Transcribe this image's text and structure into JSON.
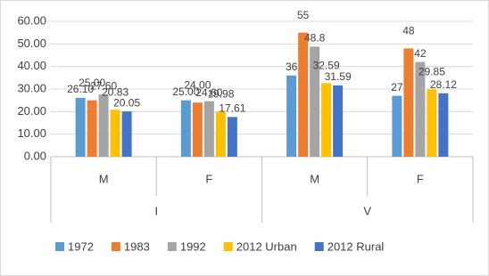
{
  "chart_data": {
    "type": "bar",
    "groups": [
      {
        "label": "I",
        "categories": [
          "M",
          "F"
        ]
      },
      {
        "label": "V",
        "categories": [
          "M",
          "F"
        ]
      }
    ],
    "series": [
      {
        "name": "1972",
        "color": "#5b9bd5",
        "values": [
          26.1,
          25,
          36,
          27
        ],
        "value_labels": [
          "26.10",
          "25.00",
          "36",
          "27"
        ]
      },
      {
        "name": "1983",
        "color": "#ed7d31",
        "values": [
          25,
          24,
          55,
          48
        ],
        "value_labels": [
          "25.00",
          "24.00",
          "55",
          "48"
        ]
      },
      {
        "name": "1992",
        "color": "#a5a5a5",
        "values": [
          27.6,
          24.6,
          48.8,
          42
        ],
        "value_labels": [
          "27.60",
          "24.60",
          "48.8",
          "42"
        ]
      },
      {
        "name": "2012 Urban",
        "color": "#ffc000",
        "values": [
          20.83,
          19.98,
          32.59,
          29.85
        ]
      },
      {
        "name": "2012 Rural",
        "color": "#4472c4",
        "values": [
          20.05,
          17.61,
          31.59,
          28.12
        ]
      }
    ],
    "ylim": [
      0,
      60
    ],
    "yticks": [
      {
        "value": 0,
        "label": "0.00"
      },
      {
        "value": 10,
        "label": "10.00"
      },
      {
        "value": 20,
        "label": "20.00"
      },
      {
        "value": 30,
        "label": "30.00"
      },
      {
        "value": 40,
        "label": "40.00"
      },
      {
        "value": 50,
        "label": "50.00"
      },
      {
        "value": 60,
        "label": "60.00"
      }
    ],
    "legend": "bottom"
  }
}
